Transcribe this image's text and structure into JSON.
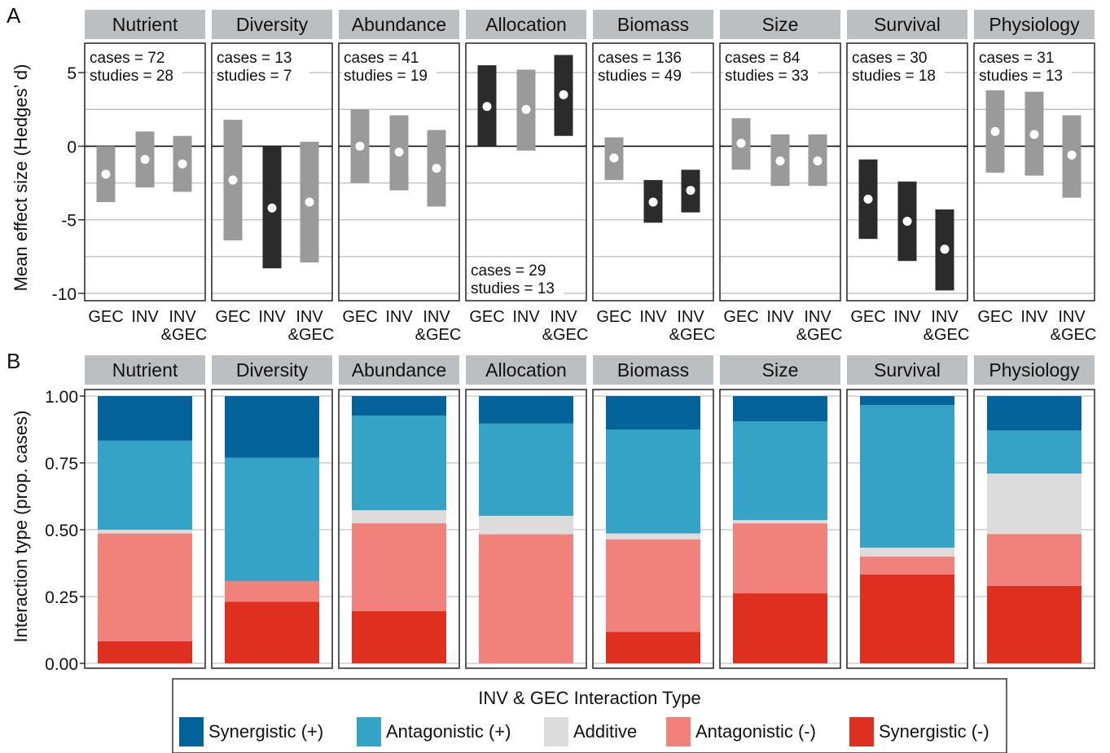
{
  "panel_labels": [
    "A",
    "B"
  ],
  "colors": {
    "strip": "#bcbfc2",
    "gray_bar": "#9a9a9a",
    "dark_bar": "#2b2b2b",
    "grid": "#c2c2c2",
    "syn_pos": "#03639a",
    "ant_pos": "#35a3c6",
    "additive": "#dcdcdc",
    "ant_neg": "#f0817b",
    "syn_neg": "#de2f1f"
  },
  "legend": {
    "title": "INV & GEC Interaction Type",
    "items": [
      {
        "label": "Synergistic (+)",
        "color": "#03639a"
      },
      {
        "label": "Antagonistic (+)",
        "color": "#35a3c6"
      },
      {
        "label": "Additive",
        "color": "#dcdcdc"
      },
      {
        "label": "Antagonistic (-)",
        "color": "#f0817b"
      },
      {
        "label": "Synergistic (-)",
        "color": "#de2f1f"
      }
    ]
  },
  "chart_data": [
    {
      "type": "interval",
      "ylabel": "Mean effect size (Hedges’ d)",
      "yticks": [
        5,
        0,
        -5,
        -10
      ],
      "ylim": [
        -10.5,
        7.0
      ],
      "categories": [
        "GEC",
        "INV",
        "INV&GEC"
      ],
      "category_labels": [
        [
          "GEC"
        ],
        [
          "INV"
        ],
        [
          "INV",
          "&GEC"
        ]
      ],
      "facets": [
        {
          "name": "Nutrient",
          "cases": "cases = 72",
          "studies": "studies = 28",
          "annot_pos": "top",
          "points": [
            {
              "mean": -1.9,
              "lo": -3.8,
              "hi": 0.0,
              "sig": false
            },
            {
              "mean": -0.9,
              "lo": -2.8,
              "hi": 1.0,
              "sig": false
            },
            {
              "mean": -1.2,
              "lo": -3.1,
              "hi": 0.7,
              "sig": false
            }
          ]
        },
        {
          "name": "Diversity",
          "cases": "cases = 13",
          "studies": "studies = 7",
          "annot_pos": "top",
          "points": [
            {
              "mean": -2.3,
              "lo": -6.4,
              "hi": 1.8,
              "sig": false
            },
            {
              "mean": -4.2,
              "lo": -8.3,
              "hi": 0.0,
              "sig": true
            },
            {
              "mean": -3.8,
              "lo": -7.9,
              "hi": 0.3,
              "sig": false
            }
          ]
        },
        {
          "name": "Abundance",
          "cases": "cases = 41",
          "studies": "studies = 19",
          "annot_pos": "top",
          "points": [
            {
              "mean": 0.0,
              "lo": -2.5,
              "hi": 2.5,
              "sig": false
            },
            {
              "mean": -0.4,
              "lo": -3.0,
              "hi": 2.1,
              "sig": false
            },
            {
              "mean": -1.5,
              "lo": -4.1,
              "hi": 1.1,
              "sig": false
            }
          ]
        },
        {
          "name": "Allocation",
          "cases": "cases = 29",
          "studies": "studies = 13",
          "annot_pos": "bottom",
          "points": [
            {
              "mean": 2.7,
              "lo": 0.0,
              "hi": 5.5,
              "sig": true
            },
            {
              "mean": 2.5,
              "lo": -0.3,
              "hi": 5.2,
              "sig": false
            },
            {
              "mean": 3.5,
              "lo": 0.7,
              "hi": 6.2,
              "sig": true
            }
          ]
        },
        {
          "name": "Biomass",
          "cases": "cases = 136",
          "studies": "studies = 49",
          "annot_pos": "top",
          "points": [
            {
              "mean": -0.8,
              "lo": -2.3,
              "hi": 0.6,
              "sig": false
            },
            {
              "mean": -3.8,
              "lo": -5.2,
              "hi": -2.3,
              "sig": true
            },
            {
              "mean": -3.0,
              "lo": -4.5,
              "hi": -1.6,
              "sig": true
            }
          ]
        },
        {
          "name": "Size",
          "cases": "cases = 84",
          "studies": "studies = 33",
          "annot_pos": "top",
          "points": [
            {
              "mean": 0.2,
              "lo": -1.6,
              "hi": 1.9,
              "sig": false
            },
            {
              "mean": -1.0,
              "lo": -2.7,
              "hi": 0.8,
              "sig": false
            },
            {
              "mean": -1.0,
              "lo": -2.7,
              "hi": 0.8,
              "sig": false
            }
          ]
        },
        {
          "name": "Survival",
          "cases": "cases = 30",
          "studies": "studies = 18",
          "annot_pos": "top",
          "points": [
            {
              "mean": -3.6,
              "lo": -6.3,
              "hi": -0.9,
              "sig": true
            },
            {
              "mean": -5.1,
              "lo": -7.8,
              "hi": -2.4,
              "sig": true
            },
            {
              "mean": -7.0,
              "lo": -9.8,
              "hi": -4.3,
              "sig": true
            }
          ]
        },
        {
          "name": "Physiology",
          "cases": "cases = 31",
          "studies": "studies = 13",
          "annot_pos": "top",
          "points": [
            {
              "mean": 1.0,
              "lo": -1.8,
              "hi": 3.8,
              "sig": false
            },
            {
              "mean": 0.8,
              "lo": -2.0,
              "hi": 3.7,
              "sig": false
            },
            {
              "mean": -0.6,
              "lo": -3.5,
              "hi": 2.1,
              "sig": false
            }
          ]
        }
      ]
    },
    {
      "type": "bar",
      "stacked": true,
      "ylabel": "Interaction type (prop. cases)",
      "yticks": [
        "1.00",
        "0.75",
        "0.50",
        "0.25",
        "0.00"
      ],
      "ylim": [
        0,
        1
      ],
      "stack_order": [
        "Synergistic (-)",
        "Antagonistic (-)",
        "Additive",
        "Antagonistic (+)",
        "Synergistic (+)"
      ],
      "facets": [
        {
          "name": "Nutrient",
          "values": [
            0.083,
            0.403,
            0.014,
            0.333,
            0.167
          ]
        },
        {
          "name": "Diversity",
          "values": [
            0.231,
            0.077,
            0.0,
            0.461,
            0.231
          ]
        },
        {
          "name": "Abundance",
          "values": [
            0.195,
            0.329,
            0.049,
            0.354,
            0.073
          ]
        },
        {
          "name": "Allocation",
          "values": [
            0.0,
            0.483,
            0.069,
            0.345,
            0.103
          ]
        },
        {
          "name": "Biomass",
          "values": [
            0.118,
            0.346,
            0.022,
            0.389,
            0.125
          ]
        },
        {
          "name": "Size",
          "values": [
            0.262,
            0.262,
            0.012,
            0.369,
            0.095
          ]
        },
        {
          "name": "Survival",
          "values": [
            0.333,
            0.067,
            0.033,
            0.533,
            0.034
          ]
        },
        {
          "name": "Physiology",
          "values": [
            0.29,
            0.194,
            0.226,
            0.161,
            0.129
          ]
        }
      ]
    }
  ]
}
